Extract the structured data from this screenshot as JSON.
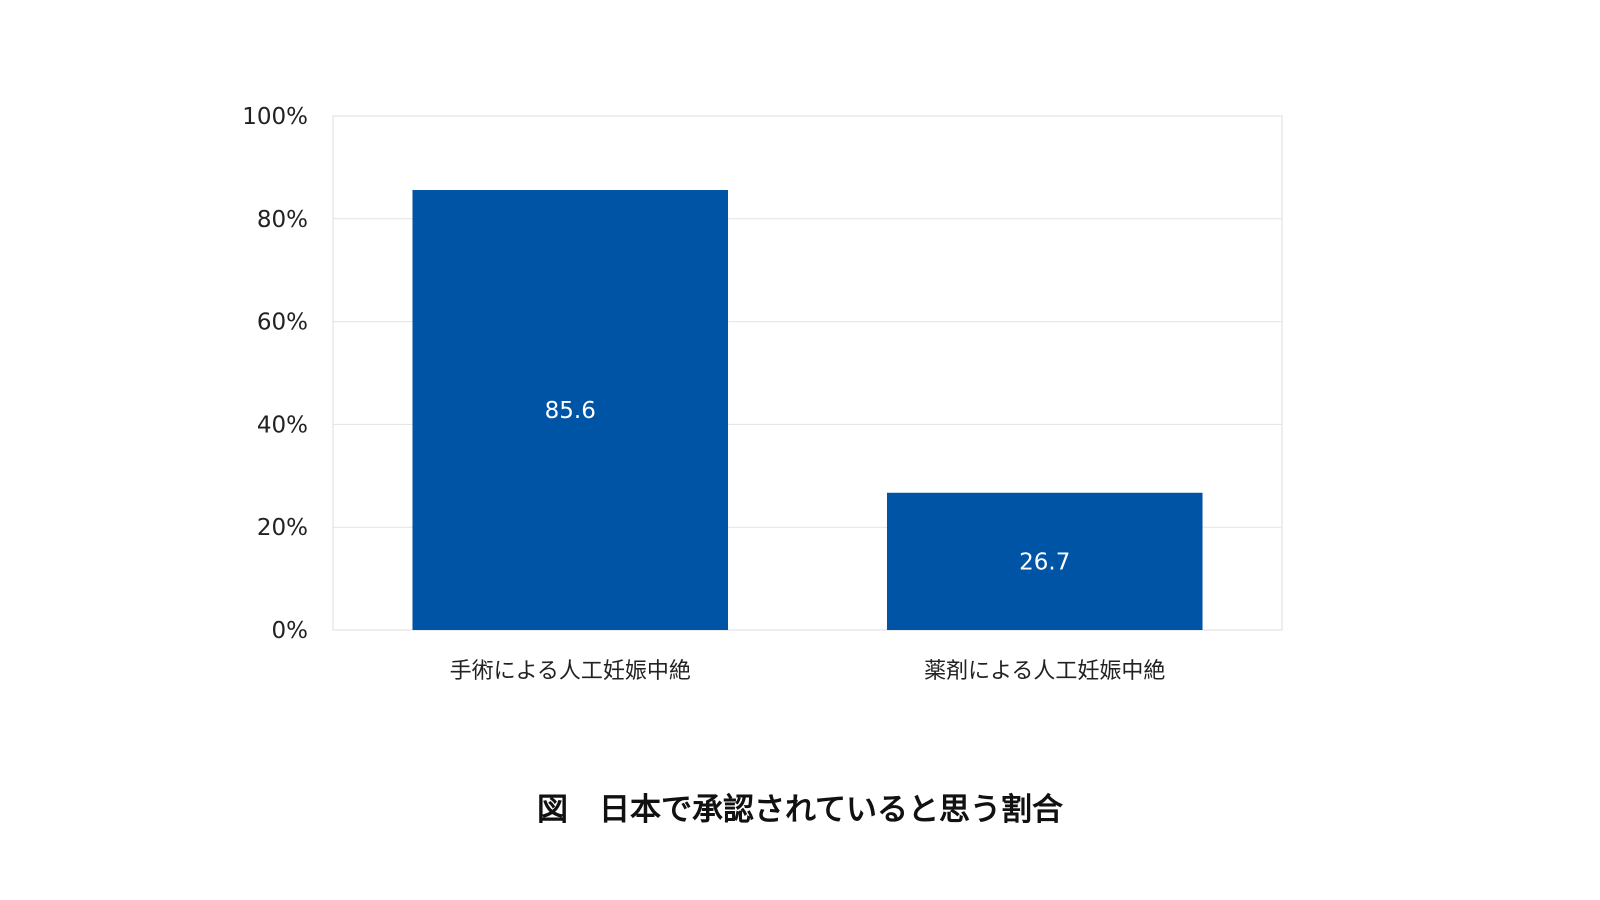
{
  "colors": {
    "bar": "#0054a6",
    "grid": "#e3e3e3",
    "background": "#ffffff"
  },
  "caption": "図　日本で承認されていると思う割合",
  "chart_data": {
    "type": "bar",
    "categories": [
      "手術による人工妊娠中絶",
      "薬剤による人工妊娠中絶"
    ],
    "values": [
      85.6,
      26.7
    ],
    "data_labels": [
      "85.6",
      "26.7"
    ],
    "title": "",
    "xlabel": "",
    "ylabel": "",
    "ylim": [
      0,
      100
    ],
    "y_ticks": [
      0,
      20,
      40,
      60,
      80,
      100
    ],
    "y_tick_labels": [
      "0%",
      "20%",
      "40%",
      "60%",
      "80%",
      "100%"
    ],
    "grid": true,
    "legend": "none"
  }
}
